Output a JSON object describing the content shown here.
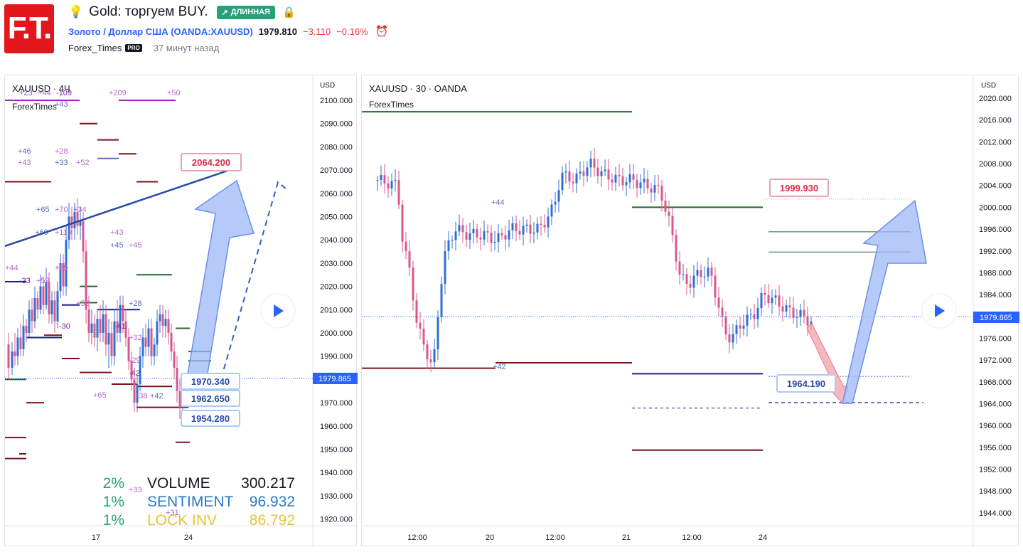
{
  "header": {
    "logo_text": "F.T.",
    "bulb_icon": "lightbulb-icon",
    "title": "Gold: торгуем BUY.",
    "badge": "ДЛИННАЯ",
    "symbol": "Золото / Доллар США (OANDA:XAUUSD)",
    "price": "1979.810",
    "change": "−3.110",
    "change_pct": "−0.16%",
    "author": "Forex_Times",
    "pro": "PRO",
    "time": "37 минут назад"
  },
  "colors": {
    "bull": "#2962ff",
    "bear": "#f23645",
    "candle_down": "#d8578c",
    "candle_up": "#2f6fd0",
    "level_green": "#1e6b2e",
    "level_red": "#7a1219",
    "level_blue": "#1a237e",
    "arrow_blue": "#9db8f7"
  },
  "chart_data": [
    {
      "type": "candlestick",
      "title": "XAUUSD · 4Ч",
      "subtitle": "ForexTimes",
      "currency": "USD",
      "ylim": [
        1915,
        2105
      ],
      "y_ticks": [
        "2100.000",
        "2090.000",
        "2080.000",
        "2070.000",
        "2060.000",
        "2050.000",
        "2040.000",
        "2030.000",
        "2020.000",
        "2010.000",
        "2000.000",
        "1990.000",
        "1980.000",
        "1970.000",
        "1960.000",
        "1950.000",
        "1940.000",
        "1930.000",
        "1920.000"
      ],
      "x_ticks": [
        "17",
        "24"
      ],
      "last_price": "1979.865",
      "price_labels": [
        "2064.200",
        "1970.340",
        "1962.650",
        "1954.280"
      ],
      "stats": [
        {
          "pct": "2%",
          "name": "VOLUME",
          "value": "300.217"
        },
        {
          "pct": "1%",
          "name": "SENTIMENT",
          "value": "96.932"
        },
        {
          "pct": "1%",
          "name": "LOCK INV",
          "value": "86.792"
        }
      ],
      "annotations": [
        "+23",
        "+44",
        "-109",
        "+43",
        "+209",
        "+50",
        "+46",
        "+28",
        "+43",
        "+33",
        "+52",
        "+59",
        "+65",
        "+70",
        "+34",
        "+60",
        "+110",
        "+43",
        "+45",
        "+45",
        "+44",
        "-33",
        "+59",
        "+61",
        "+28",
        "+52",
        "-30",
        "-41",
        "+32",
        "+29",
        "-42",
        "+65",
        "+38",
        "+42",
        "+33",
        "+31"
      ]
    },
    {
      "type": "candlestick",
      "title": "XAUUSD · 30 · OANDA",
      "subtitle": "ForexTimes",
      "currency": "USD",
      "ylim": [
        1941,
        2022
      ],
      "y_ticks": [
        "2020.000",
        "2016.000",
        "2012.000",
        "2008.000",
        "2004.000",
        "2000.000",
        "1996.000",
        "1992.000",
        "1988.000",
        "1984.000",
        "1980.000",
        "1976.000",
        "1972.000",
        "1968.000",
        "1964.000",
        "1960.000",
        "1956.000",
        "1952.000",
        "1948.000",
        "1944.000"
      ],
      "x_ticks": [
        "12:00",
        "20",
        "12:00",
        "21",
        "12:00",
        "24"
      ],
      "last_price": "1979.865",
      "price_labels": [
        "1999.930",
        "1964.190"
      ],
      "annotations": [
        "+44",
        "+42"
      ]
    }
  ]
}
